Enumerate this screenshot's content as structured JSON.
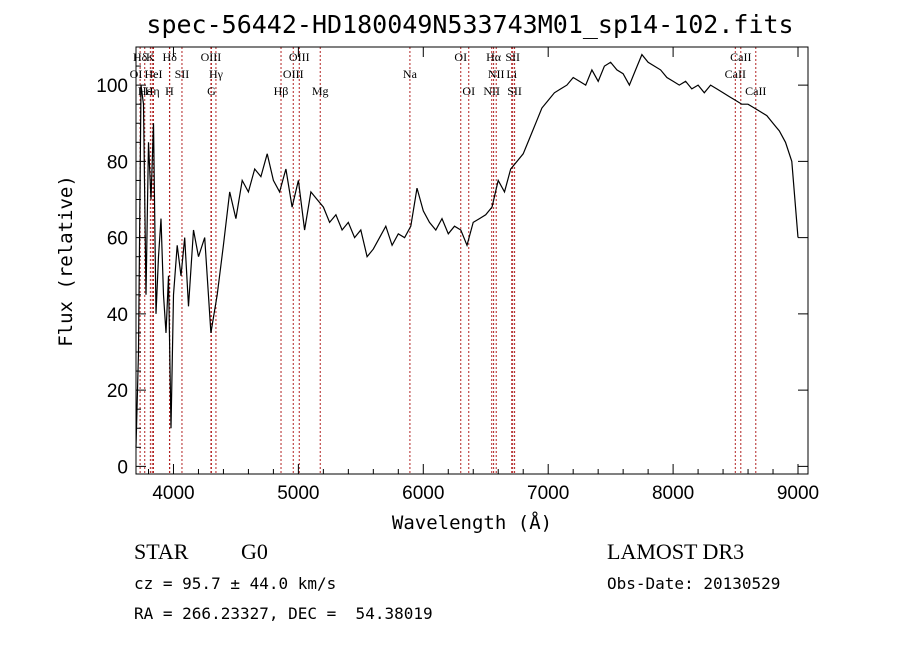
{
  "chart_data": {
    "type": "line",
    "title": "spec-56442-HD180049N533743M01_sp14-102.fits",
    "xlabel": "Wavelength (Å)",
    "ylabel": "Flux (relative)",
    "xlim": [
      3700,
      9080
    ],
    "ylim": [
      -2,
      110
    ],
    "x_ticks": [
      4000,
      5000,
      6000,
      7000,
      8000,
      9000
    ],
    "y_ticks": [
      0,
      20,
      40,
      60,
      80,
      100
    ],
    "grid": false,
    "series": [
      {
        "name": "flux",
        "x": [
          3700,
          3720,
          3740,
          3760,
          3780,
          3800,
          3820,
          3840,
          3860,
          3880,
          3900,
          3920,
          3940,
          3960,
          3980,
          4000,
          4030,
          4060,
          4090,
          4120,
          4160,
          4200,
          4250,
          4300,
          4350,
          4400,
          4450,
          4500,
          4550,
          4600,
          4650,
          4700,
          4750,
          4800,
          4850,
          4900,
          4950,
          5000,
          5050,
          5100,
          5150,
          5200,
          5250,
          5300,
          5350,
          5400,
          5450,
          5500,
          5550,
          5600,
          5650,
          5700,
          5750,
          5800,
          5850,
          5900,
          5950,
          6000,
          6050,
          6100,
          6150,
          6200,
          6250,
          6300,
          6350,
          6400,
          6450,
          6500,
          6550,
          6600,
          6650,
          6700,
          6750,
          6800,
          6850,
          6900,
          6950,
          7000,
          7050,
          7100,
          7150,
          7200,
          7250,
          7300,
          7350,
          7400,
          7450,
          7500,
          7550,
          7600,
          7650,
          7700,
          7750,
          7800,
          7850,
          7900,
          7950,
          8000,
          8050,
          8100,
          8150,
          8200,
          8250,
          8300,
          8350,
          8400,
          8450,
          8500,
          8550,
          8600,
          8650,
          8700,
          8750,
          8800,
          8850,
          8900,
          8950,
          9000
        ],
        "values": [
          5,
          30,
          100,
          95,
          45,
          85,
          70,
          90,
          40,
          55,
          65,
          45,
          35,
          50,
          10,
          45,
          58,
          50,
          60,
          42,
          62,
          55,
          60,
          35,
          45,
          58,
          72,
          65,
          75,
          72,
          78,
          76,
          82,
          75,
          72,
          78,
          68,
          75,
          62,
          72,
          70,
          68,
          64,
          66,
          62,
          64,
          60,
          62,
          55,
          57,
          60,
          63,
          58,
          61,
          60,
          63,
          73,
          67,
          64,
          62,
          65,
          61,
          63,
          62,
          58,
          64,
          65,
          66,
          68,
          75,
          72,
          78,
          80,
          82,
          86,
          90,
          94,
          96,
          98,
          99,
          100,
          102,
          101,
          100,
          104,
          101,
          105,
          106,
          104,
          103,
          100,
          104,
          108,
          106,
          105,
          104,
          102,
          101,
          100,
          101,
          99,
          100,
          98,
          100,
          99,
          98,
          97,
          96,
          95,
          95,
          94,
          93,
          92,
          90,
          88,
          85,
          80,
          60
        ]
      }
    ],
    "spectral_lines": [
      {
        "label": "Hδ",
        "x": 3733,
        "row": 1
      },
      {
        "label": "K",
        "x": 3815,
        "row": 1
      },
      {
        "label": "Hδ",
        "x": 3970,
        "row": 1
      },
      {
        "label": "OIII",
        "x": 4300,
        "row": 1
      },
      {
        "label": "OIII",
        "x": 5007,
        "row": 1
      },
      {
        "label": "OI",
        "x": 6300,
        "row": 1
      },
      {
        "label": "Hα",
        "x": 6563,
        "row": 1
      },
      {
        "label": "SII",
        "x": 6716,
        "row": 1
      },
      {
        "label": "CaII",
        "x": 8542,
        "row": 1
      },
      {
        "label": "OI",
        "x": 3700,
        "row": 2
      },
      {
        "label": "HeI",
        "x": 3840,
        "row": 2
      },
      {
        "label": "SII",
        "x": 4068,
        "row": 2
      },
      {
        "label": "Hγ",
        "x": 4340,
        "row": 2
      },
      {
        "label": "OIII",
        "x": 4959,
        "row": 2
      },
      {
        "label": "Na",
        "x": 5893,
        "row": 2
      },
      {
        "label": "NII",
        "x": 6584,
        "row": 2
      },
      {
        "label": "Li",
        "x": 6708,
        "row": 2
      },
      {
        "label": "CaII",
        "x": 8498,
        "row": 2
      },
      {
        "label": "Hε",
        "x": 3770,
        "row": 3
      },
      {
        "label": "Hη",
        "x": 3830,
        "row": 3
      },
      {
        "label": "H",
        "x": 3968,
        "row": 3
      },
      {
        "label": "G",
        "x": 4304,
        "row": 3
      },
      {
        "label": "Hβ",
        "x": 4861,
        "row": 3
      },
      {
        "label": "Mg",
        "x": 5175,
        "row": 3
      },
      {
        "label": "OI",
        "x": 6364,
        "row": 3
      },
      {
        "label": "NII",
        "x": 6548,
        "row": 3
      },
      {
        "label": "SII",
        "x": 6731,
        "row": 3
      },
      {
        "label": "CaII",
        "x": 8662,
        "row": 3
      }
    ],
    "line_marker_color": "#b22222"
  },
  "info": {
    "object_class": "STAR",
    "subclass": "G0",
    "survey": "LAMOST DR3",
    "redshift_text": "cz = 95.7 ± 44.0 km/s",
    "obs_date": "Obs-Date: 20130529",
    "coords": "RA = 266.23327, DEC =  54.38019"
  }
}
